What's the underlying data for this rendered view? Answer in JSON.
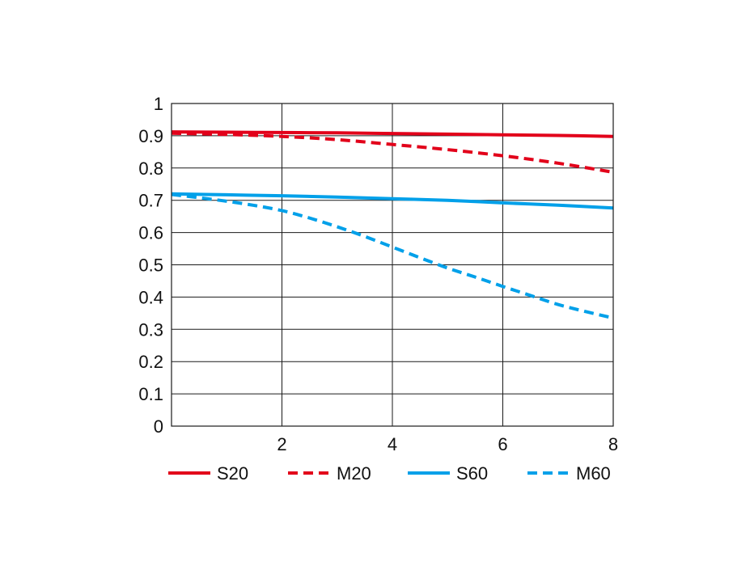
{
  "chart_data": {
    "type": "line",
    "title": "",
    "xlabel": "",
    "ylabel": "",
    "xlim": [
      0,
      8
    ],
    "ylim": [
      0,
      1
    ],
    "grid": true,
    "legend_position": "bottom",
    "x_ticks": [
      {
        "value": 2,
        "label": "2"
      },
      {
        "value": 4,
        "label": "4"
      },
      {
        "value": 6,
        "label": "6"
      },
      {
        "value": 8,
        "label": "8"
      }
    ],
    "y_ticks": [
      {
        "value": 0,
        "label": "0"
      },
      {
        "value": 0.1,
        "label": "0.1"
      },
      {
        "value": 0.2,
        "label": "0.2"
      },
      {
        "value": 0.3,
        "label": "0.3"
      },
      {
        "value": 0.4,
        "label": "0.4"
      },
      {
        "value": 0.5,
        "label": "0.5"
      },
      {
        "value": 0.6,
        "label": "0.6"
      },
      {
        "value": 0.7,
        "label": "0.7"
      },
      {
        "value": 0.8,
        "label": "0.8"
      },
      {
        "value": 0.9,
        "label": "0.9"
      },
      {
        "value": 1,
        "label": "1"
      }
    ],
    "series": [
      {
        "name": "S20",
        "color": "#e2001a",
        "dash": "solid",
        "x": [
          0,
          1,
          2,
          3,
          4,
          5,
          6,
          7,
          8
        ],
        "y": [
          0.912,
          0.911,
          0.91,
          0.909,
          0.907,
          0.905,
          0.903,
          0.901,
          0.898
        ]
      },
      {
        "name": "M20",
        "color": "#e2001a",
        "dash": "dashed",
        "x": [
          0,
          1,
          2,
          3,
          4,
          5,
          6,
          7,
          8
        ],
        "y": [
          0.908,
          0.904,
          0.898,
          0.888,
          0.873,
          0.857,
          0.838,
          0.815,
          0.787
        ]
      },
      {
        "name": "S60",
        "color": "#00a0e9",
        "dash": "solid",
        "x": [
          0,
          1,
          2,
          3,
          4,
          5,
          6,
          7,
          8
        ],
        "y": [
          0.72,
          0.717,
          0.714,
          0.71,
          0.705,
          0.7,
          0.692,
          0.685,
          0.676
        ]
      },
      {
        "name": "M60",
        "color": "#00a0e9",
        "dash": "dashed",
        "x": [
          0,
          0.5,
          1,
          1.5,
          2,
          2.5,
          3,
          3.5,
          4,
          4.5,
          5,
          5.5,
          6,
          6.5,
          7,
          7.5,
          8
        ],
        "y": [
          0.718,
          0.708,
          0.697,
          0.684,
          0.668,
          0.645,
          0.618,
          0.588,
          0.555,
          0.522,
          0.49,
          0.462,
          0.433,
          0.405,
          0.377,
          0.355,
          0.335
        ]
      }
    ]
  }
}
